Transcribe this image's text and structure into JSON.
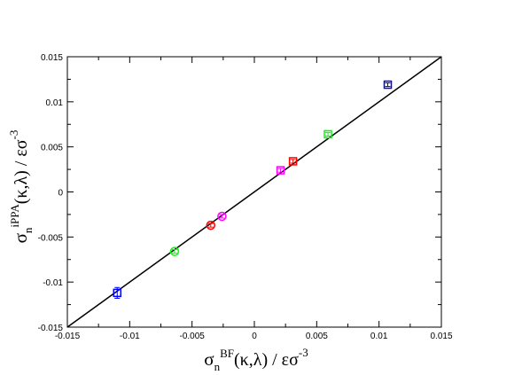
{
  "chart_data": {
    "type": "scatter",
    "title": "",
    "xlabel": {
      "sym": "σ",
      "sub": "n",
      "sup": "BF",
      "rest": "(κ,λ) / εσ",
      "exp": "-3"
    },
    "ylabel": {
      "sym": "σ",
      "sub": "n",
      "sup": "iPPA",
      "rest": "(κ,λ) / εσ",
      "exp": "-3"
    },
    "xlim": [
      -0.015,
      0.015
    ],
    "ylim": [
      -0.015,
      0.015
    ],
    "x_ticks": [
      -0.015,
      -0.01,
      -0.005,
      0,
      0.005,
      0.01,
      0.015
    ],
    "y_ticks": [
      -0.015,
      -0.01,
      -0.005,
      0,
      0.005,
      0.01,
      0.015
    ],
    "x_tick_labels": [
      "-0.015",
      "-0.01",
      "-0.005",
      "0",
      "0.005",
      "0.01",
      "0.015"
    ],
    "y_tick_labels": [
      "-0.015",
      "-0.01",
      "-0.005",
      "0",
      "0.005",
      "0.01",
      "0.015"
    ],
    "grid": false,
    "reference_line": {
      "x": [
        -0.015,
        0.015
      ],
      "y": [
        -0.015,
        0.015
      ],
      "color": "#000000"
    },
    "series": [
      {
        "color": "#0000ff",
        "points": [
          {
            "x": -0.011,
            "y": -0.0112,
            "marker": "square",
            "yerr": 0.0006
          },
          {
            "x": 0.0107,
            "y": 0.0119,
            "marker": "square",
            "yerr": 0.0002
          }
        ]
      },
      {
        "color": "#00ff00",
        "points": [
          {
            "x": -0.0064,
            "y": -0.0066,
            "marker": "circle",
            "yerr": 0.0002
          },
          {
            "x": 0.0059,
            "y": 0.0064,
            "marker": "square",
            "yerr": 0.0002
          }
        ]
      },
      {
        "color": "#ff0000",
        "points": [
          {
            "x": -0.0035,
            "y": -0.0037,
            "marker": "circle",
            "yerr": 0.0002
          },
          {
            "x": 0.0031,
            "y": 0.0034,
            "marker": "square",
            "yerr": 0.0002
          }
        ]
      },
      {
        "color": "#ff00ff",
        "points": [
          {
            "x": -0.0026,
            "y": -0.0027,
            "marker": "circle",
            "yerr": 0.0002
          },
          {
            "x": 0.0021,
            "y": 0.0024,
            "marker": "square",
            "yerr": 0.0002
          }
        ]
      }
    ]
  }
}
